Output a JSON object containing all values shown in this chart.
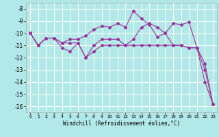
{
  "xlabel": "Windchill (Refroidissement éolien,°C)",
  "background_color": "#b3e8e8",
  "grid_color": "#ffffff",
  "line_color": "#993399",
  "xlim": [
    -0.5,
    23.5
  ],
  "ylim": [
    -16.5,
    -7.5
  ],
  "yticks": [
    -16,
    -15,
    -14,
    -13,
    -12,
    -11,
    -10,
    -9,
    -8
  ],
  "xticks": [
    0,
    1,
    2,
    3,
    4,
    5,
    6,
    7,
    8,
    9,
    10,
    11,
    12,
    13,
    14,
    15,
    16,
    17,
    18,
    19,
    20,
    21,
    22,
    23
  ],
  "line1_y": [
    -10.0,
    -11.0,
    -10.4,
    -10.4,
    -10.8,
    -10.5,
    -10.5,
    -10.2,
    -9.7,
    -9.4,
    -9.5,
    -9.2,
    -9.5,
    -8.2,
    -8.8,
    -9.3,
    -10.3,
    -10.0,
    -9.2,
    -9.3,
    -9.1,
    -11.2,
    -14.0,
    -15.8
  ],
  "line2_y": [
    -10.0,
    -11.0,
    -10.4,
    -10.4,
    -10.8,
    -10.8,
    -10.8,
    -12.0,
    -11.0,
    -10.5,
    -10.5,
    -10.5,
    -11.0,
    -10.5,
    -9.5,
    -9.2,
    -9.5,
    -10.0,
    -11.0,
    -11.0,
    -11.2,
    -11.2,
    -12.5,
    -15.8
  ],
  "line3_y": [
    -10.0,
    -11.0,
    -10.4,
    -10.4,
    -11.2,
    -11.5,
    -10.8,
    -12.0,
    -11.5,
    -11.0,
    -11.0,
    -11.0,
    -11.0,
    -11.0,
    -11.0,
    -11.0,
    -11.0,
    -11.0,
    -11.0,
    -11.0,
    -11.2,
    -11.2,
    -13.0,
    -15.8
  ]
}
